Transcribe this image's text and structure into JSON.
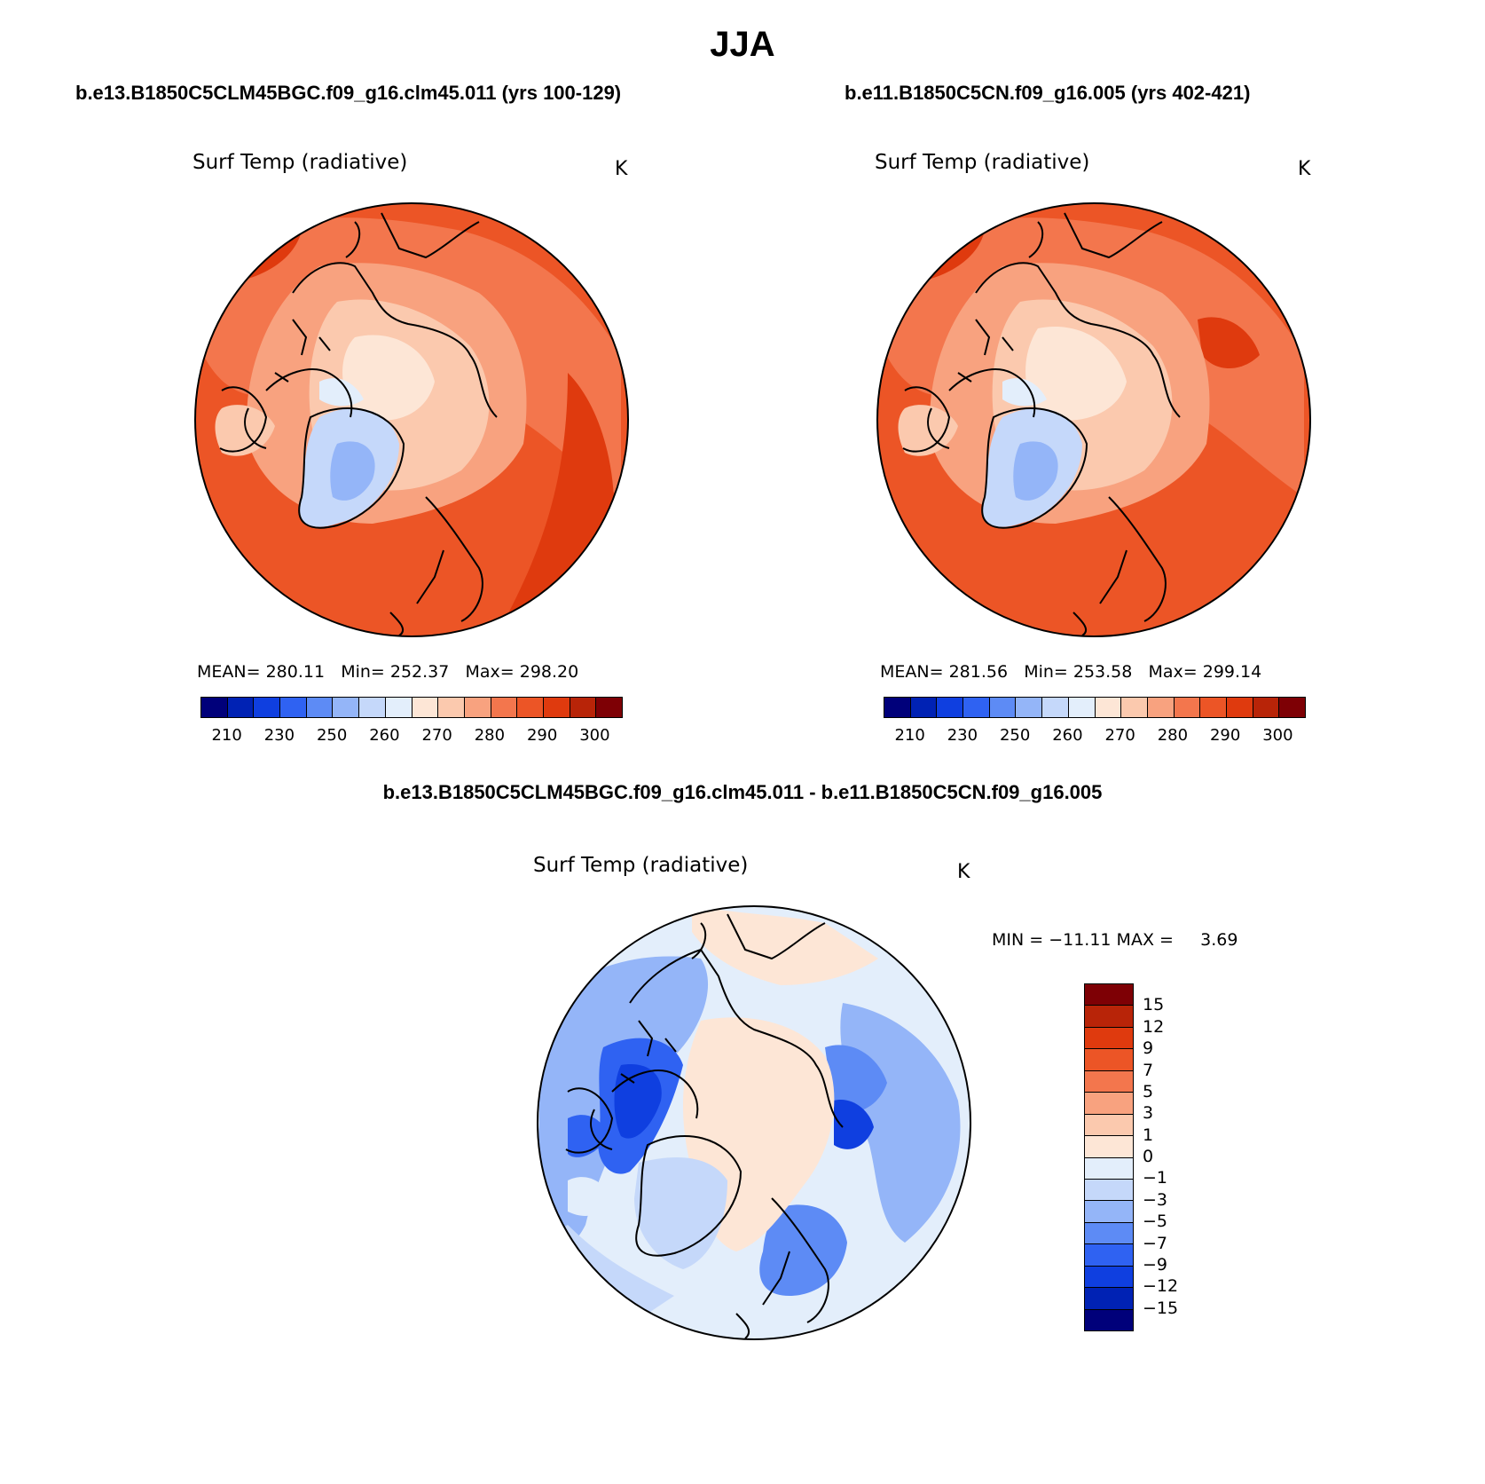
{
  "season": "JJA",
  "panels": [
    {
      "case_title": "b.e13.B1850C5CLM45BGC.f09_g16.clm45.011 (yrs 100-129)",
      "variable": "Surf Temp (radiative)",
      "unit": "K",
      "stats": {
        "mean_label": "MEAN=",
        "mean": "280.11",
        "min_label": "Min=",
        "min": "252.37",
        "max_label": "Max=",
        "max": "298.20"
      },
      "colorbar_ticks": [
        "210",
        "230",
        "250",
        "260",
        "270",
        "280",
        "290",
        "300"
      ]
    },
    {
      "case_title": "b.e11.B1850C5CN.f09_g16.005 (yrs 402-421)",
      "variable": "Surf Temp (radiative)",
      "unit": "K",
      "stats": {
        "mean_label": "MEAN=",
        "mean": "281.56",
        "min_label": "Min=",
        "min": "253.58",
        "max_label": "Max=",
        "max": "299.14"
      },
      "colorbar_ticks": [
        "210",
        "230",
        "250",
        "260",
        "270",
        "280",
        "290",
        "300"
      ]
    }
  ],
  "difference": {
    "title": "b.e13.B1850C5CLM45BGC.f09_g16.clm45.011 - b.e11.B1850C5CN.f09_g16.005",
    "variable": "Surf Temp (radiative)",
    "unit": "K",
    "minmax_text": "MIN = −11.11 MAX =",
    "max_value": "3.69",
    "colorbar_ticks": [
      "15",
      "12",
      "9",
      "7",
      "5",
      "3",
      "1",
      "0",
      "−1",
      "−3",
      "−5",
      "−7",
      "−9",
      "−12",
      "−15"
    ]
  },
  "colors": {
    "abs_scale": [
      "#00007a",
      "#0022b4",
      "#0f3fe0",
      "#2f62f2",
      "#5d8bf5",
      "#94b5f8",
      "#c5d8fa",
      "#e3eefb",
      "#fde6d6",
      "#fbc9ae",
      "#f8a27f",
      "#f3764d",
      "#ec5526",
      "#df3a0e",
      "#b82408",
      "#7e0005"
    ],
    "diff_scale": [
      "#7e0005",
      "#b82408",
      "#df3a0e",
      "#ec5526",
      "#f3764d",
      "#f8a27f",
      "#fbc9ae",
      "#fde6d6",
      "#e3eefb",
      "#c5d8fa",
      "#94b5f8",
      "#5d8bf5",
      "#2f62f2",
      "#0f3fe0",
      "#0022b4",
      "#00007a"
    ]
  }
}
